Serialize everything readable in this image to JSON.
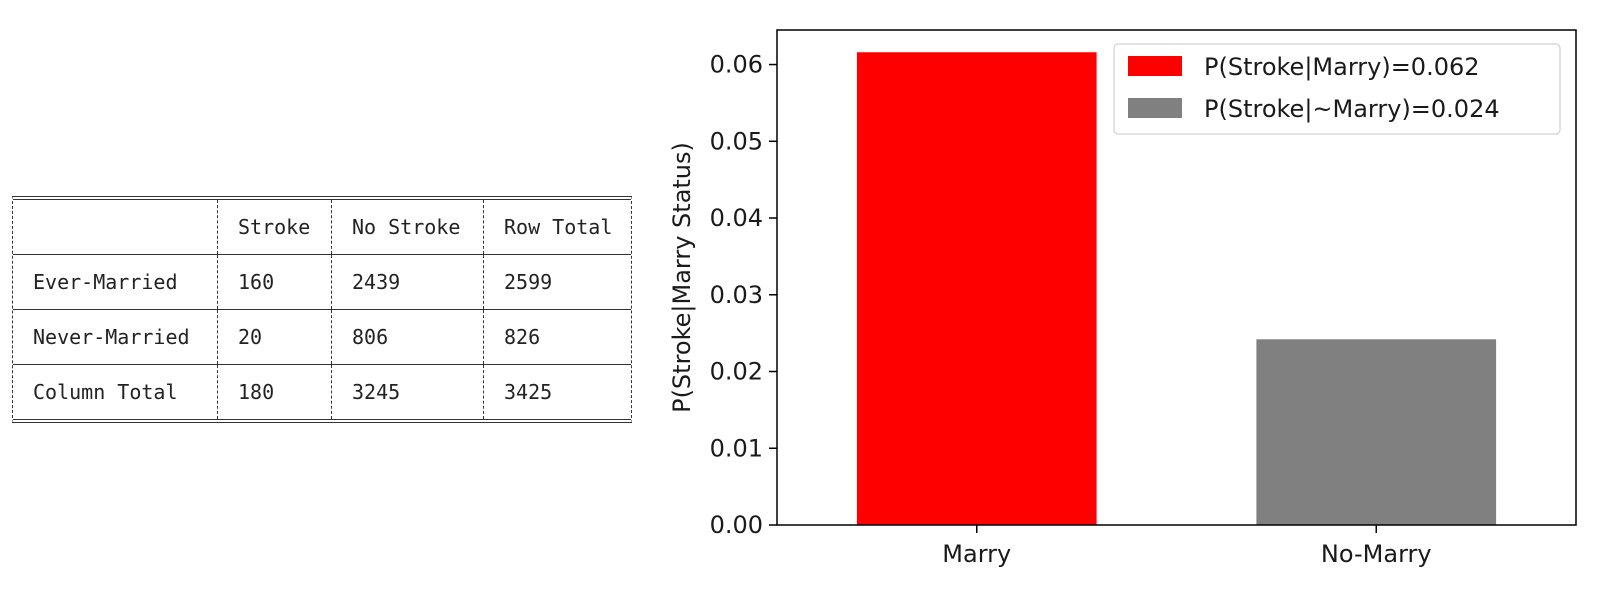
{
  "table": {
    "header": [
      "",
      "Stroke",
      "No Stroke",
      "Row Total"
    ],
    "rows": [
      [
        "Ever-Married",
        "160",
        "2439",
        "2599"
      ],
      [
        "Never-Married",
        "20",
        "806",
        "826"
      ],
      [
        "Column Total",
        "180",
        "3245",
        "3425"
      ]
    ]
  },
  "chart_data": {
    "type": "bar",
    "categories": [
      "Marry",
      "No-Marry"
    ],
    "values": [
      0.0616,
      0.0242
    ],
    "colors": [
      "#ff0000",
      "#808080"
    ],
    "ylabel": "P(Stroke|Marry Status)",
    "xlabel": "",
    "ylim": [
      0,
      0.0645
    ],
    "yticks": [
      0.0,
      0.01,
      0.02,
      0.03,
      0.04,
      0.05,
      0.06
    ],
    "ytick_labels": [
      "0.00",
      "0.01",
      "0.02",
      "0.03",
      "0.04",
      "0.05",
      "0.06"
    ],
    "legend": {
      "placement": "top-right",
      "entries": [
        {
          "label": "P(Stroke|Marry)=0.062",
          "color": "#ff0000"
        },
        {
          "label": "P(Stroke|~Marry)=0.024",
          "color": "#808080"
        }
      ]
    },
    "grid": false
  }
}
